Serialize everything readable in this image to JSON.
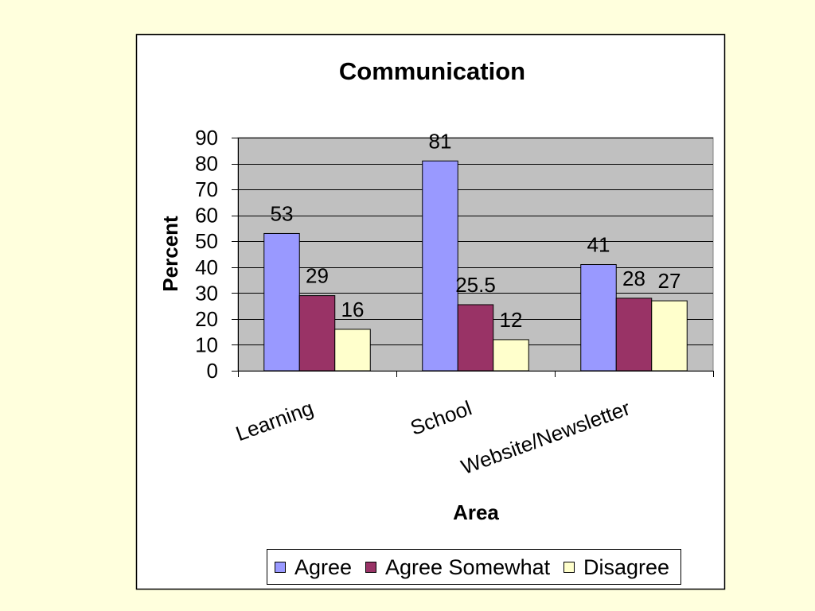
{
  "colors": {
    "page_background": "#FFFFDD",
    "chart_background": "#FFFFFF",
    "plot_background": "#C0C0C0"
  },
  "chart_data": {
    "type": "bar",
    "title": "Communication",
    "xlabel": "Area",
    "ylabel": "Percent",
    "categories": [
      "Learning",
      "School",
      "Website/Newsletter"
    ],
    "series": [
      {
        "name": "Agree",
        "color": "#9999FF",
        "values": [
          53,
          81,
          41
        ]
      },
      {
        "name": "Agree Somewhat",
        "color": "#993366",
        "values": [
          29,
          25.5,
          28
        ]
      },
      {
        "name": "Disagree",
        "color": "#FFFFCC",
        "values": [
          16,
          12,
          27
        ]
      }
    ],
    "ylim": [
      0,
      90
    ],
    "yticks": [
      0,
      10,
      20,
      30,
      40,
      50,
      60,
      70,
      80,
      90
    ],
    "grid": true,
    "data_labels": true,
    "legend": "bottom"
  }
}
